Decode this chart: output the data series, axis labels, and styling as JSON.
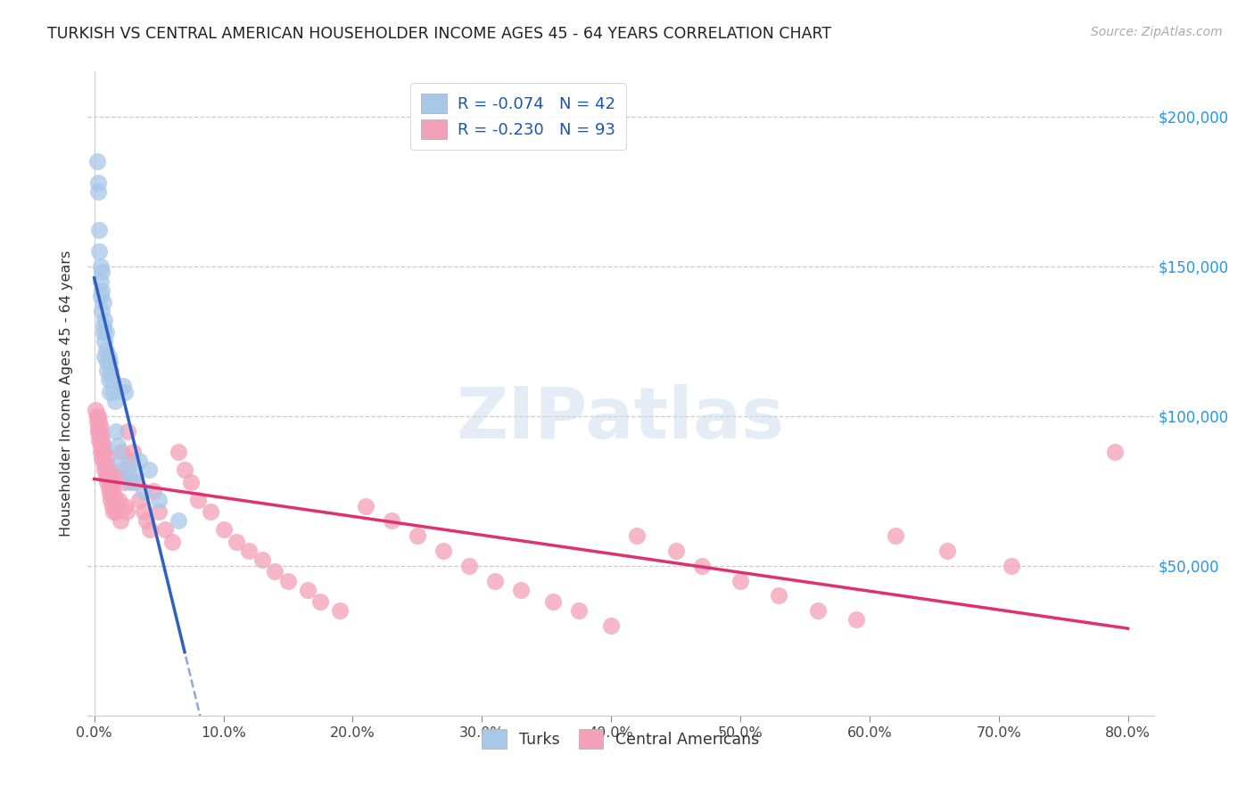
{
  "title": "TURKISH VS CENTRAL AMERICAN HOUSEHOLDER INCOME AGES 45 - 64 YEARS CORRELATION CHART",
  "source": "Source: ZipAtlas.com",
  "ylabel": "Householder Income Ages 45 - 64 years",
  "ylim": [
    0,
    215000
  ],
  "xlim": [
    -0.005,
    0.82
  ],
  "ytick_values": [
    0,
    50000,
    100000,
    150000,
    200000
  ],
  "ytick_labels_right": [
    "",
    "$50,000",
    "$100,000",
    "$150,000",
    "$200,000"
  ],
  "xtick_values": [
    0.0,
    0.1,
    0.2,
    0.3,
    0.4,
    0.5,
    0.6,
    0.7,
    0.8
  ],
  "xtick_labels": [
    "0.0%",
    "10.0%",
    "20.0%",
    "30.0%",
    "40.0%",
    "50.0%",
    "60.0%",
    "70.0%",
    "80.0%"
  ],
  "legend_top_line1": "R = -0.074   N = 42",
  "legend_top_line2": "R = -0.230   N = 93",
  "legend_bottom": [
    "Turks",
    "Central Americans"
  ],
  "turks_color": "#a8c8e8",
  "central_color": "#f4a0b8",
  "turks_line_color": "#3060c0",
  "central_line_color": "#e03070",
  "watermark": "ZIPatlas",
  "background": "#ffffff",
  "grid_color": "#cccccc",
  "turks_x": [
    0.002,
    0.003,
    0.003,
    0.004,
    0.004,
    0.005,
    0.005,
    0.005,
    0.006,
    0.006,
    0.006,
    0.007,
    0.007,
    0.007,
    0.008,
    0.008,
    0.008,
    0.009,
    0.009,
    0.01,
    0.01,
    0.011,
    0.011,
    0.012,
    0.012,
    0.013,
    0.014,
    0.015,
    0.016,
    0.017,
    0.018,
    0.02,
    0.022,
    0.024,
    0.026,
    0.028,
    0.03,
    0.035,
    0.038,
    0.042,
    0.05,
    0.065
  ],
  "turks_y": [
    185000,
    175000,
    178000,
    162000,
    155000,
    150000,
    145000,
    140000,
    148000,
    135000,
    142000,
    138000,
    130000,
    128000,
    132000,
    125000,
    120000,
    128000,
    122000,
    118000,
    115000,
    120000,
    112000,
    118000,
    108000,
    115000,
    112000,
    108000,
    105000,
    95000,
    90000,
    85000,
    110000,
    108000,
    82000,
    78000,
    80000,
    85000,
    75000,
    82000,
    72000,
    65000
  ],
  "central_x": [
    0.001,
    0.002,
    0.002,
    0.003,
    0.003,
    0.003,
    0.004,
    0.004,
    0.004,
    0.005,
    0.005,
    0.005,
    0.006,
    0.006,
    0.006,
    0.007,
    0.007,
    0.007,
    0.008,
    0.008,
    0.008,
    0.009,
    0.009,
    0.01,
    0.01,
    0.01,
    0.011,
    0.011,
    0.012,
    0.012,
    0.013,
    0.013,
    0.014,
    0.014,
    0.015,
    0.015,
    0.016,
    0.017,
    0.018,
    0.019,
    0.02,
    0.021,
    0.022,
    0.023,
    0.024,
    0.025,
    0.026,
    0.028,
    0.03,
    0.032,
    0.035,
    0.038,
    0.04,
    0.043,
    0.046,
    0.05,
    0.055,
    0.06,
    0.065,
    0.07,
    0.075,
    0.08,
    0.09,
    0.1,
    0.11,
    0.12,
    0.13,
    0.14,
    0.15,
    0.165,
    0.175,
    0.19,
    0.21,
    0.23,
    0.25,
    0.27,
    0.29,
    0.31,
    0.33,
    0.355,
    0.375,
    0.4,
    0.42,
    0.45,
    0.47,
    0.5,
    0.53,
    0.56,
    0.59,
    0.62,
    0.66,
    0.71,
    0.79
  ],
  "central_y": [
    102000,
    100000,
    98000,
    95000,
    100000,
    96000,
    92000,
    98000,
    94000,
    90000,
    96000,
    88000,
    94000,
    86000,
    92000,
    85000,
    90000,
    88000,
    84000,
    82000,
    88000,
    80000,
    86000,
    78000,
    84000,
    80000,
    76000,
    82000,
    74000,
    80000,
    72000,
    78000,
    70000,
    76000,
    68000,
    74000,
    72000,
    68000,
    80000,
    72000,
    65000,
    88000,
    82000,
    78000,
    70000,
    68000,
    95000,
    85000,
    88000,
    78000,
    72000,
    68000,
    65000,
    62000,
    75000,
    68000,
    62000,
    58000,
    88000,
    82000,
    78000,
    72000,
    68000,
    62000,
    58000,
    55000,
    52000,
    48000,
    45000,
    42000,
    38000,
    35000,
    70000,
    65000,
    60000,
    55000,
    50000,
    45000,
    42000,
    38000,
    35000,
    30000,
    60000,
    55000,
    50000,
    45000,
    40000,
    35000,
    32000,
    60000,
    55000,
    50000,
    88000
  ]
}
